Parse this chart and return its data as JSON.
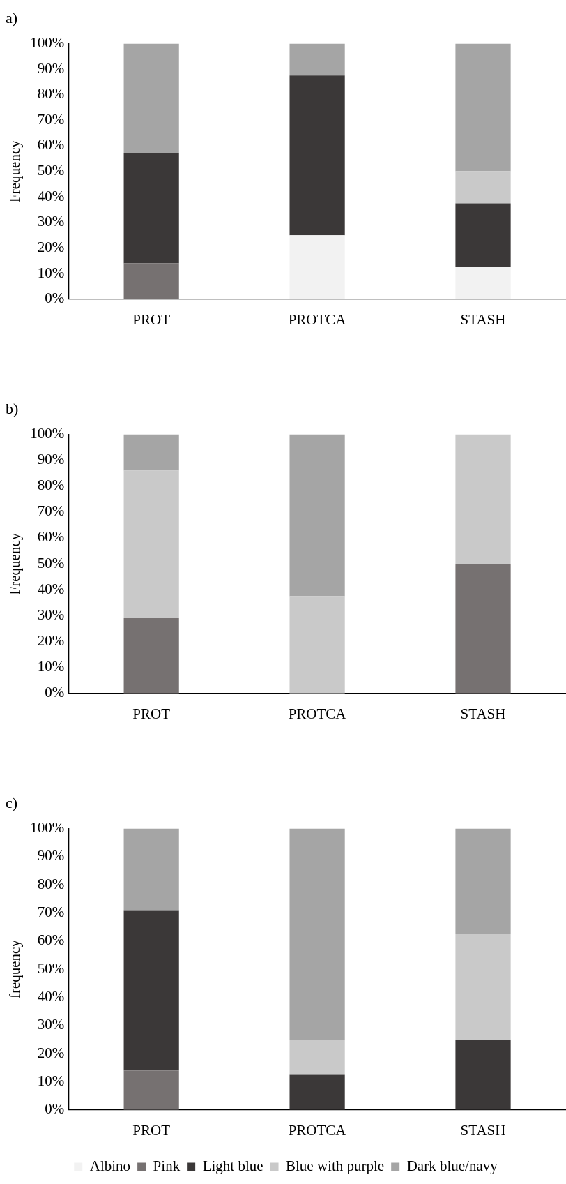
{
  "chart_data": [
    {
      "type": "bar",
      "title": "a)",
      "ylabel": "Frequency",
      "categories": [
        "PROT",
        "PROTCA",
        "STASH"
      ],
      "stacked": true,
      "legend": false,
      "grid": false,
      "ylim": [
        0,
        100
      ],
      "yticks": [
        {
          "value": 0,
          "label": "0%"
        },
        {
          "value": 10,
          "label": "10%"
        },
        {
          "value": 20,
          "label": "20%"
        },
        {
          "value": 30,
          "label": "30%"
        },
        {
          "value": 40,
          "label": "40%"
        },
        {
          "value": 50,
          "label": "50%"
        },
        {
          "value": 60,
          "label": "60%"
        },
        {
          "value": 70,
          "label": "70%"
        },
        {
          "value": 80,
          "label": "80%"
        },
        {
          "value": 90,
          "label": "90%"
        },
        {
          "value": 100,
          "label": "100%"
        }
      ],
      "series": [
        {
          "color": "#f2f2f2",
          "values": [
            0,
            25,
            12.5
          ]
        },
        {
          "color": "#767171",
          "values": [
            14,
            0,
            0
          ]
        },
        {
          "color": "#3b3838",
          "values": [
            43,
            62.5,
            25
          ]
        },
        {
          "color": "#c9c9c9",
          "values": [
            0,
            0,
            12.5
          ]
        },
        {
          "color": "#a5a5a5",
          "values": [
            43,
            12.5,
            50
          ]
        }
      ]
    },
    {
      "type": "bar",
      "title": "b)",
      "ylabel": "Frequency",
      "categories": [
        "PROT",
        "PROTCA",
        "STASH"
      ],
      "stacked": true,
      "legend": false,
      "grid": false,
      "ylim": [
        0,
        100
      ],
      "yticks": [
        {
          "value": 0,
          "label": "0%"
        },
        {
          "value": 10,
          "label": "10%"
        },
        {
          "value": 20,
          "label": "20%"
        },
        {
          "value": 30,
          "label": "30%"
        },
        {
          "value": 40,
          "label": "40%"
        },
        {
          "value": 50,
          "label": "50%"
        },
        {
          "value": 60,
          "label": "60%"
        },
        {
          "value": 70,
          "label": "70%"
        },
        {
          "value": 80,
          "label": "80%"
        },
        {
          "value": 90,
          "label": "90%"
        },
        {
          "value": 100,
          "label": "100%"
        }
      ],
      "series": [
        {
          "color": "#f2f2f2",
          "values": [
            0,
            0,
            0
          ]
        },
        {
          "color": "#767171",
          "values": [
            29,
            0,
            50
          ]
        },
        {
          "color": "#3b3838",
          "values": [
            0,
            0,
            0
          ]
        },
        {
          "color": "#c9c9c9",
          "values": [
            57,
            37.5,
            50
          ]
        },
        {
          "color": "#a5a5a5",
          "values": [
            14,
            62.5,
            0
          ]
        }
      ]
    },
    {
      "type": "bar",
      "title": "c)",
      "ylabel": "frequency",
      "categories": [
        "PROT",
        "PROTCA",
        "STASH"
      ],
      "stacked": true,
      "legend": "bottom",
      "grid": false,
      "ylim": [
        0,
        100
      ],
      "yticks": [
        {
          "value": 0,
          "label": "0%"
        },
        {
          "value": 10,
          "label": "10%"
        },
        {
          "value": 20,
          "label": "20%"
        },
        {
          "value": 30,
          "label": "30%"
        },
        {
          "value": 40,
          "label": "40%"
        },
        {
          "value": 50,
          "label": "50%"
        },
        {
          "value": 60,
          "label": "60%"
        },
        {
          "value": 70,
          "label": "70%"
        },
        {
          "value": 80,
          "label": "80%"
        },
        {
          "value": 90,
          "label": "90%"
        },
        {
          "value": 100,
          "label": "100%"
        }
      ],
      "series": [
        {
          "name": "Albino",
          "color": "#f2f2f2",
          "values": [
            0,
            0,
            0
          ]
        },
        {
          "name": "Pink",
          "color": "#767171",
          "values": [
            14,
            0,
            0
          ]
        },
        {
          "name": "Light blue",
          "color": "#3b3838",
          "values": [
            57,
            12.5,
            25
          ]
        },
        {
          "name": "Blue with purple",
          "color": "#c9c9c9",
          "values": [
            0,
            12.5,
            37.5
          ]
        },
        {
          "name": "Dark blue/navy",
          "color": "#a5a5a5",
          "values": [
            29,
            75,
            37.5
          ]
        }
      ]
    }
  ]
}
